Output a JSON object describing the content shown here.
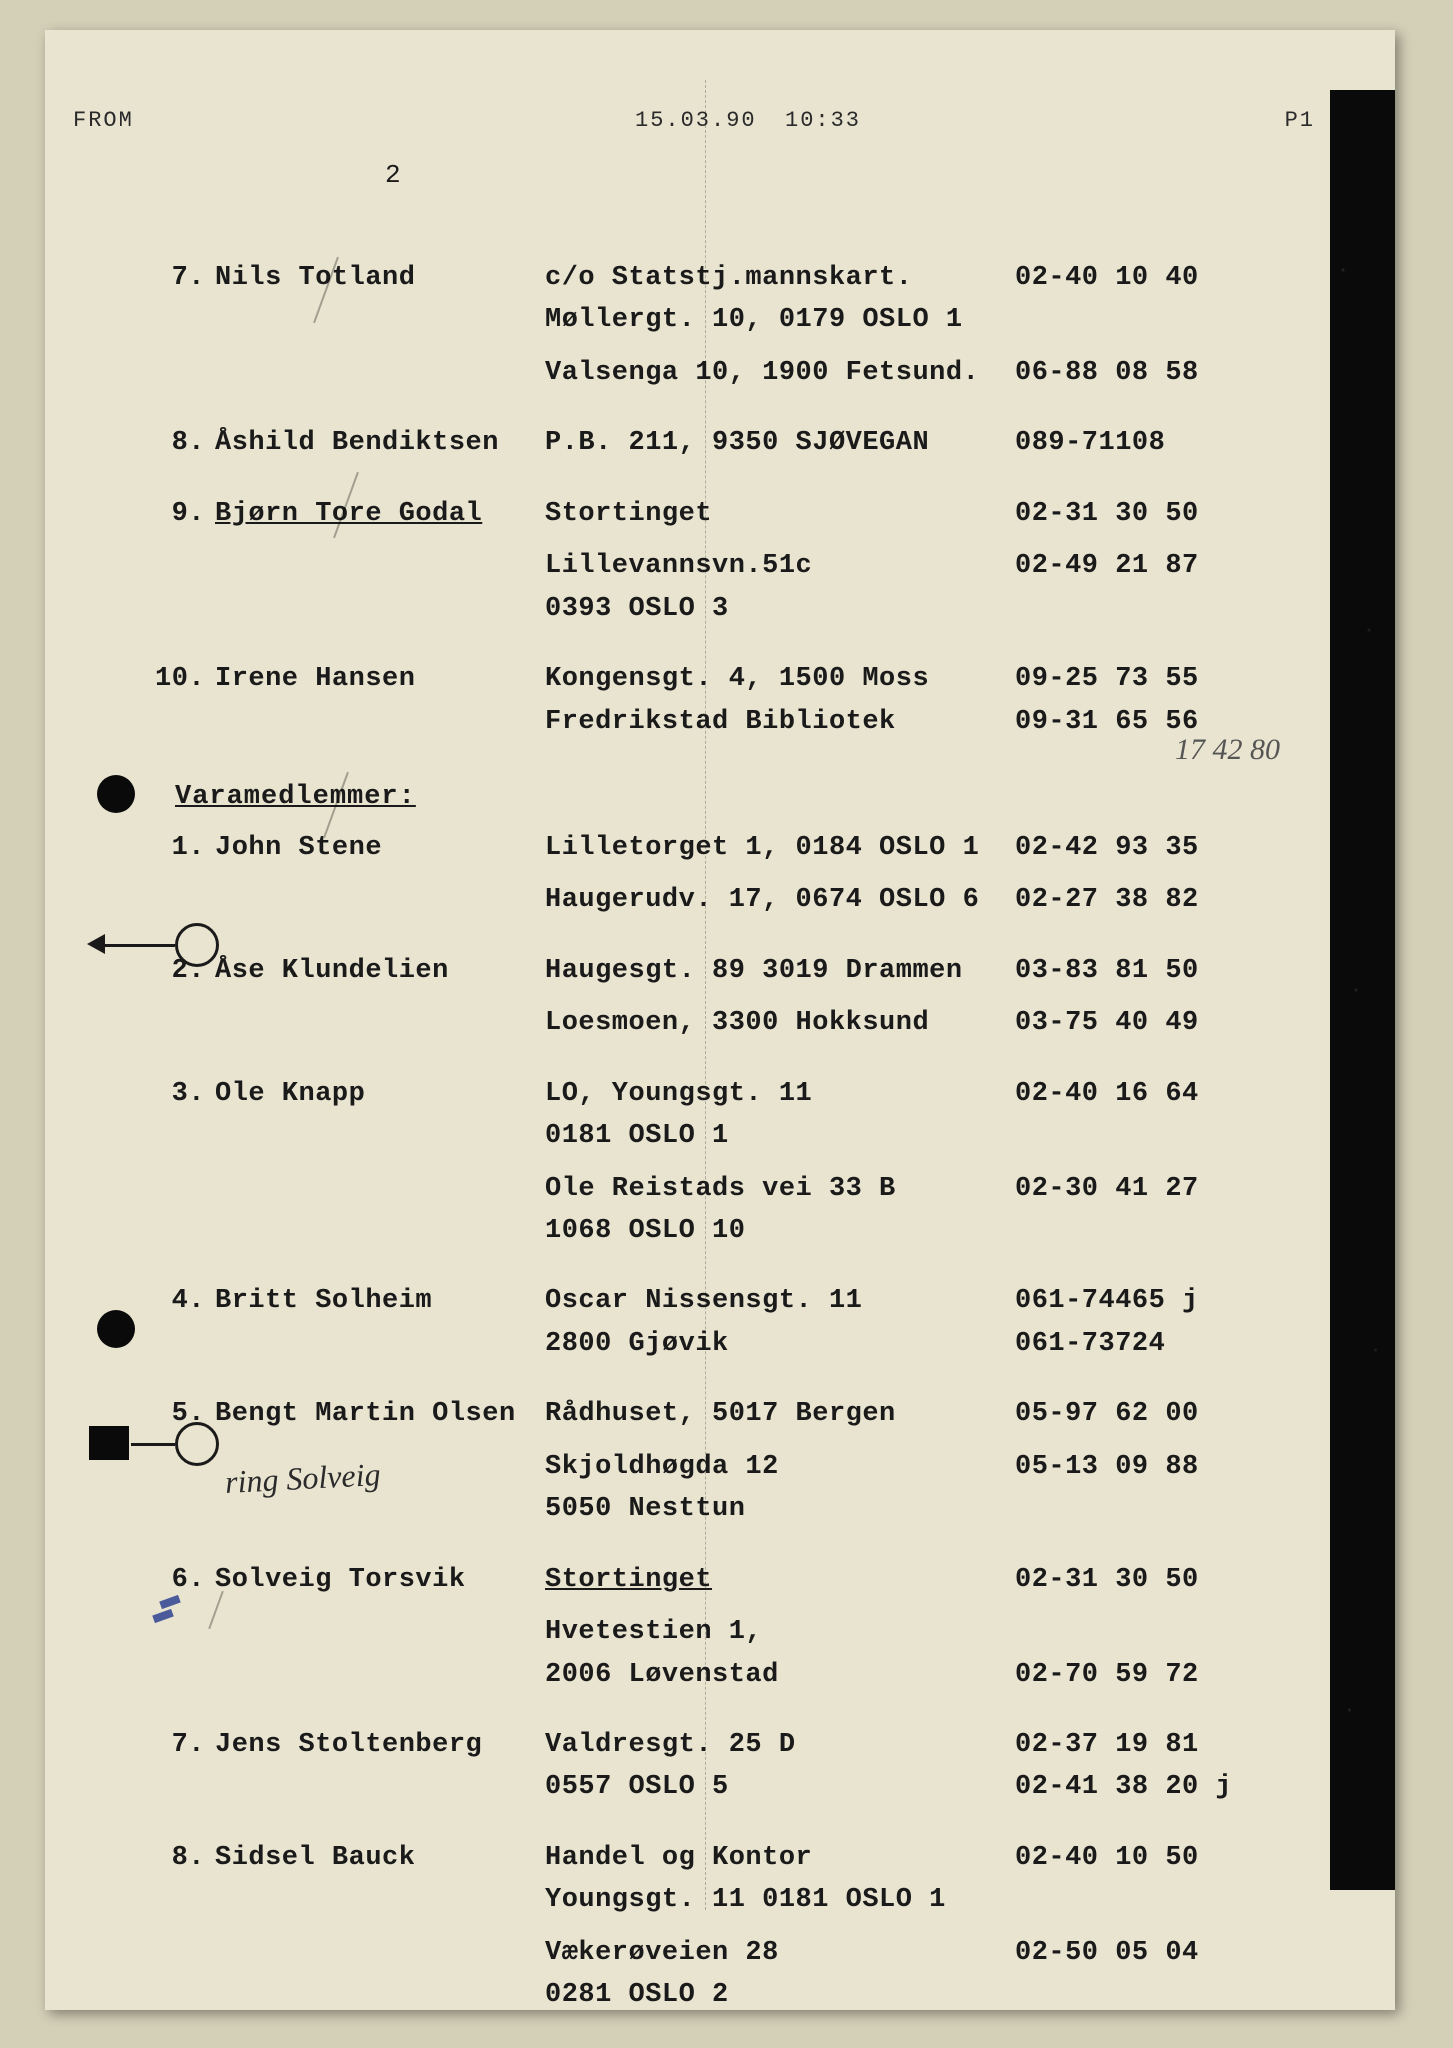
{
  "fax": {
    "from": "FROM",
    "date": "15.03.90",
    "time": "10:33",
    "page": "P1"
  },
  "page_number": "2",
  "members": [
    {
      "num": "7.",
      "name": "Nils Totland",
      "addr": [
        "c/o Statstj.mannskart.",
        "Møllergt. 10, 0179 OSLO 1"
      ],
      "phone": [
        "02-40 10 40"
      ],
      "addr2": [
        "Valsenga 10, 1900 Fetsund."
      ],
      "phone2": [
        "06-88 08 58"
      ]
    },
    {
      "num": "8.",
      "name": "Åshild Bendiktsen",
      "addr": [
        "P.B. 211, 9350 SJØVEGAN"
      ],
      "phone": [
        "089-71108"
      ]
    },
    {
      "num": "9.",
      "name": "Bjørn Tore Godal",
      "underline": true,
      "addr": [
        "Stortinget"
      ],
      "phone": [
        "02-31 30 50"
      ],
      "addr2": [
        "Lillevannsvn.51c",
        "0393 OSLO 3"
      ],
      "phone2": [
        "02-49 21 87"
      ]
    },
    {
      "num": "10.",
      "name": "Irene Hansen",
      "addr": [
        "Kongensgt. 4, 1500 Moss",
        "Fredrikstad Bibliotek"
      ],
      "phone": [
        "09-25 73 55",
        "09-31 65 56"
      ]
    }
  ],
  "section_header": "Varamedlemmer:",
  "handwritten_note": "17 42 80",
  "vara": [
    {
      "num": "1.",
      "name": "John Stene",
      "addr": [
        "Lilletorget 1, 0184 OSLO 1"
      ],
      "phone": [
        "02-42 93 35"
      ],
      "addr2": [
        "Haugerudv. 17, 0674 OSLO 6"
      ],
      "phone2": [
        "02-27 38 82"
      ]
    },
    {
      "num": "2.",
      "name": "Åse Klundelien",
      "circled": true,
      "addr": [
        "Haugesgt. 89  3019 Drammen"
      ],
      "phone": [
        "03-83 81 50"
      ],
      "addr2": [
        "Loesmoen, 3300 Hokksund"
      ],
      "phone2": [
        "03-75 40 49"
      ]
    },
    {
      "num": "3.",
      "name": "Ole Knapp",
      "addr": [
        "LO, Youngsgt. 11",
        "0181 OSLO 1"
      ],
      "phone": [
        "02-40 16 64"
      ],
      "addr2": [
        "Ole Reistads vei 33 B",
        "1068 OSLO 10"
      ],
      "phone2": [
        "02-30 41 27"
      ]
    },
    {
      "num": "4.",
      "name": "Britt Solheim",
      "addr": [
        "Oscar Nissensgt. 11",
        "2800 Gjøvik"
      ],
      "phone": [
        "061-74465 j",
        "061-73724"
      ]
    },
    {
      "num": "5.",
      "name": "Bengt Martin Olsen",
      "addr": [
        "Rådhuset, 5017 Bergen"
      ],
      "phone": [
        "05-97 62 00"
      ],
      "addr2": [
        "Skjoldhøgda 12",
        "5050 Nesttun"
      ],
      "phone2": [
        "05-13 09 88"
      ]
    },
    {
      "num": "6.",
      "name": "Solveig Torsvik",
      "circled": true,
      "addr_underline": true,
      "addr": [
        "Stortinget"
      ],
      "phone": [
        "02-31 30 50"
      ],
      "addr2": [
        "Hvetestien 1,",
        "2006 Løvenstad"
      ],
      "phone2": [
        "",
        "02-70 59 72"
      ]
    },
    {
      "num": "7.",
      "name": "Jens Stoltenberg",
      "addr": [
        "Valdresgt. 25 D",
        "0557 OSLO 5"
      ],
      "phone": [
        "02-37 19 81",
        "02-41 38 20 j"
      ]
    },
    {
      "num": "8.",
      "name": "Sidsel Bauck",
      "addr": [
        "Handel og Kontor",
        "Youngsgt. 11 0181 OSLO 1"
      ],
      "phone": [
        "02-40 10 50"
      ],
      "addr2": [
        "Vækerøveien 28",
        "0281 OSLO 2"
      ],
      "phone2": [
        "02-50 05 04"
      ]
    }
  ],
  "handwritten_signature": "ring Solveig",
  "colors": {
    "page_bg": "#e8e4d0",
    "body_bg": "#d4d0b8",
    "text": "#1a1a1a",
    "dark_edge": "#0a0a0a"
  }
}
